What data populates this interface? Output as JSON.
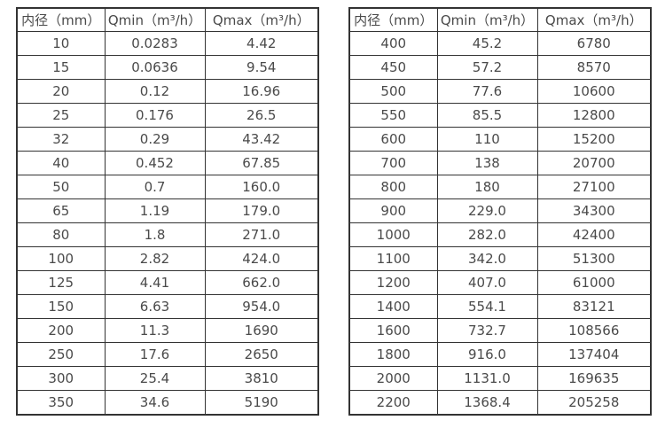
{
  "colors": {
    "background": "#ffffff",
    "border": "#333333",
    "text": "#4a4a4a"
  },
  "chart_data": [
    {
      "type": "table",
      "title": "",
      "columns": [
        "内径（mm）",
        "Qmin（m³/h）",
        "Qmax（m³/h）"
      ],
      "rows": [
        [
          "10",
          "0.0283",
          "4.42"
        ],
        [
          "15",
          "0.0636",
          "9.54"
        ],
        [
          "20",
          "0.12",
          "16.96"
        ],
        [
          "25",
          "0.176",
          "26.5"
        ],
        [
          "32",
          "0.29",
          "43.42"
        ],
        [
          "40",
          "0.452",
          "67.85"
        ],
        [
          "50",
          "0.7",
          "160.0"
        ],
        [
          "65",
          "1.19",
          "179.0"
        ],
        [
          "80",
          "1.8",
          "271.0"
        ],
        [
          "100",
          "2.82",
          "424.0"
        ],
        [
          "125",
          "4.41",
          "662.0"
        ],
        [
          "150",
          "6.63",
          "954.0"
        ],
        [
          "200",
          "11.3",
          "1690"
        ],
        [
          "250",
          "17.6",
          "2650"
        ],
        [
          "300",
          "25.4",
          "3810"
        ],
        [
          "350",
          "34.6",
          "5190"
        ]
      ]
    },
    {
      "type": "table",
      "title": "",
      "columns": [
        "内径（mm）",
        "Qmin（m³/h）",
        "Qmax（m³/h）"
      ],
      "rows": [
        [
          "400",
          "45.2",
          "6780"
        ],
        [
          "450",
          "57.2",
          "8570"
        ],
        [
          "500",
          "77.6",
          "10600"
        ],
        [
          "550",
          "85.5",
          "12800"
        ],
        [
          "600",
          "110",
          "15200"
        ],
        [
          "700",
          "138",
          "20700"
        ],
        [
          "800",
          "180",
          "27100"
        ],
        [
          "900",
          "229.0",
          "34300"
        ],
        [
          "1000",
          "282.0",
          "42400"
        ],
        [
          "1100",
          "342.0",
          "51300"
        ],
        [
          "1200",
          "407.0",
          "61000"
        ],
        [
          "1400",
          "554.1",
          "83121"
        ],
        [
          "1600",
          "732.7",
          "108566"
        ],
        [
          "1800",
          "916.0",
          "137404"
        ],
        [
          "2000",
          "1131.0",
          "169635"
        ],
        [
          "2200",
          "1368.4",
          "205258"
        ]
      ]
    }
  ]
}
